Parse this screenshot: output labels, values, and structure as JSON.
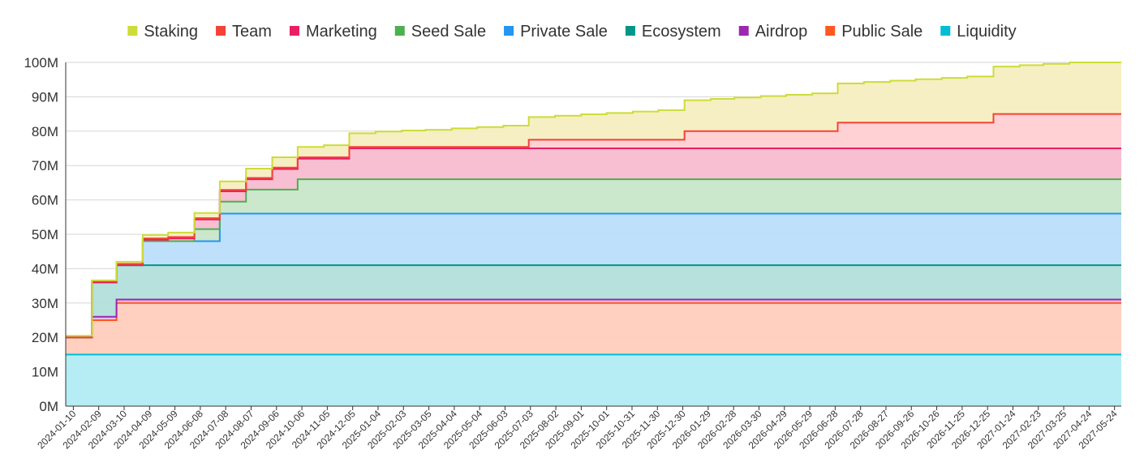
{
  "chart_data": {
    "type": "area",
    "stacked": true,
    "step": true,
    "legend_position": "top",
    "grid": true,
    "ylim": [
      0,
      100
    ],
    "y_unit_suffix": "M",
    "y_ticks": [
      "0M",
      "10M",
      "20M",
      "30M",
      "40M",
      "50M",
      "60M",
      "70M",
      "80M",
      "90M",
      "100M"
    ],
    "x_ticks": [
      "2024-01-10",
      "2024-02-09",
      "2024-03-10",
      "2024-04-09",
      "2024-05-09",
      "2024-06-08",
      "2024-07-08",
      "2024-08-07",
      "2024-09-06",
      "2024-10-06",
      "2024-11-05",
      "2024-12-05",
      "2025-01-04",
      "2025-02-03",
      "2025-03-05",
      "2025-04-04",
      "2025-05-04",
      "2025-06-03",
      "2025-07-03",
      "2025-08-02",
      "2025-09-01",
      "2025-10-01",
      "2025-10-31",
      "2025-11-30",
      "2025-12-30",
      "2026-01-29",
      "2026-02-28",
      "2026-03-30",
      "2026-04-29",
      "2026-05-29",
      "2026-06-28",
      "2026-07-28",
      "2026-08-27",
      "2026-09-26",
      "2026-10-26",
      "2026-11-25",
      "2026-12-25",
      "2027-01-24",
      "2027-02-23",
      "2027-03-25",
      "2027-04-24",
      "2027-05-24"
    ],
    "months": [
      "2024-01",
      "2024-02",
      "2024-03",
      "2024-04",
      "2024-05",
      "2024-06",
      "2024-07",
      "2024-08",
      "2024-09",
      "2024-10",
      "2024-11",
      "2024-12",
      "2025-01",
      "2025-02",
      "2025-03",
      "2025-04",
      "2025-05",
      "2025-06",
      "2025-07",
      "2025-08",
      "2025-09",
      "2025-10",
      "2025-11",
      "2025-12",
      "2026-01",
      "2026-02",
      "2026-03",
      "2026-04",
      "2026-05",
      "2026-06",
      "2026-07",
      "2026-08",
      "2026-09",
      "2026-10",
      "2026-11",
      "2026-12",
      "2027-01",
      "2027-02",
      "2027-03",
      "2027-04",
      "2027-05",
      "2027-06"
    ],
    "series": [
      {
        "name": "Liquidity",
        "color": "#00BCD4",
        "fill": "#B2EBF2",
        "values": [
          15,
          15,
          15,
          15,
          15,
          15,
          15,
          15,
          15,
          15,
          15,
          15,
          15,
          15,
          15,
          15,
          15,
          15,
          15,
          15,
          15,
          15,
          15,
          15,
          15,
          15,
          15,
          15,
          15,
          15,
          15,
          15,
          15,
          15,
          15,
          15,
          15,
          15,
          15,
          15,
          15,
          15
        ]
      },
      {
        "name": "Public Sale",
        "color": "#FF5722",
        "fill": "#FFCCBC",
        "values": [
          5,
          10,
          15,
          15,
          15,
          15,
          15,
          15,
          15,
          15,
          15,
          15,
          15,
          15,
          15,
          15,
          15,
          15,
          15,
          15,
          15,
          15,
          15,
          15,
          15,
          15,
          15,
          15,
          15,
          15,
          15,
          15,
          15,
          15,
          15,
          15,
          15,
          15,
          15,
          15,
          15,
          15
        ]
      },
      {
        "name": "Airdrop",
        "color": "#9C27B0",
        "fill": "#E1BEE7",
        "values": [
          0,
          1,
          1,
          1,
          1,
          1,
          1,
          1,
          1,
          1,
          1,
          1,
          1,
          1,
          1,
          1,
          1,
          1,
          1,
          1,
          1,
          1,
          1,
          1,
          1,
          1,
          1,
          1,
          1,
          1,
          1,
          1,
          1,
          1,
          1,
          1,
          1,
          1,
          1,
          1,
          1,
          1
        ]
      },
      {
        "name": "Ecosystem",
        "color": "#009688",
        "fill": "#B2DFDB",
        "values": [
          0,
          10,
          10,
          10,
          10,
          10,
          10,
          10,
          10,
          10,
          10,
          10,
          10,
          10,
          10,
          10,
          10,
          10,
          10,
          10,
          10,
          10,
          10,
          10,
          10,
          10,
          10,
          10,
          10,
          10,
          10,
          10,
          10,
          10,
          10,
          10,
          10,
          10,
          10,
          10,
          10,
          10
        ]
      },
      {
        "name": "Private Sale",
        "color": "#2196F3",
        "fill": "#BBDEFB",
        "values": [
          0,
          0,
          0,
          7,
          7,
          7,
          15,
          15,
          15,
          15,
          15,
          15,
          15,
          15,
          15,
          15,
          15,
          15,
          15,
          15,
          15,
          15,
          15,
          15,
          15,
          15,
          15,
          15,
          15,
          15,
          15,
          15,
          15,
          15,
          15,
          15,
          15,
          15,
          15,
          15,
          15,
          15
        ]
      },
      {
        "name": "Seed Sale",
        "color": "#4CAF50",
        "fill": "#C8E6C9",
        "values": [
          0,
          0,
          0,
          0,
          0,
          3.5,
          3.5,
          7,
          7,
          10,
          10,
          10,
          10,
          10,
          10,
          10,
          10,
          10,
          10,
          10,
          10,
          10,
          10,
          10,
          10,
          10,
          10,
          10,
          10,
          10,
          10,
          10,
          10,
          10,
          10,
          10,
          10,
          10,
          10,
          10,
          10,
          10
        ]
      },
      {
        "name": "Marketing",
        "color": "#E91E63",
        "fill": "#F8BBD0",
        "values": [
          0,
          0,
          0,
          0.4,
          0.8,
          2.8,
          3,
          3,
          6,
          6,
          6,
          9,
          9,
          9,
          9,
          9,
          9,
          9,
          9,
          9,
          9,
          9,
          9,
          9,
          9,
          9,
          9,
          9,
          9,
          9,
          9,
          9,
          9,
          9,
          9,
          9,
          9,
          9,
          9,
          9,
          9,
          9
        ]
      },
      {
        "name": "Team",
        "color": "#F44336",
        "fill": "#FFCDD2",
        "values": [
          0,
          0.4,
          0.4,
          0.4,
          0.4,
          0.4,
          0.4,
          0.4,
          0.4,
          0.4,
          0.4,
          0.4,
          0.4,
          0.4,
          0.4,
          0.4,
          0.4,
          0.4,
          2.5,
          2.5,
          2.5,
          2.5,
          2.5,
          2.5,
          5,
          5,
          5,
          5,
          5,
          5,
          7.5,
          7.5,
          7.5,
          7.5,
          7.5,
          7.5,
          10,
          10,
          10,
          10,
          10,
          10
        ]
      },
      {
        "name": "Staking",
        "color": "#CDDC39",
        "fill": "#F5EEC0",
        "values": [
          0.5,
          0.2,
          0.6,
          1,
          1.3,
          1.5,
          2.5,
          2.7,
          3,
          3,
          3.5,
          4,
          4.5,
          4.8,
          5,
          5.4,
          5.8,
          6.2,
          6.6,
          7,
          7.4,
          7.8,
          8.2,
          8.6,
          9,
          9.4,
          9.8,
          10.2,
          10.6,
          11,
          11.4,
          11.8,
          12.2,
          12.6,
          13,
          13.4,
          13.8,
          14.2,
          14.6,
          15,
          15,
          15
        ]
      }
    ],
    "legend_order": [
      "Staking",
      "Team",
      "Marketing",
      "Seed Sale",
      "Private Sale",
      "Ecosystem",
      "Airdrop",
      "Public Sale",
      "Liquidity"
    ]
  }
}
